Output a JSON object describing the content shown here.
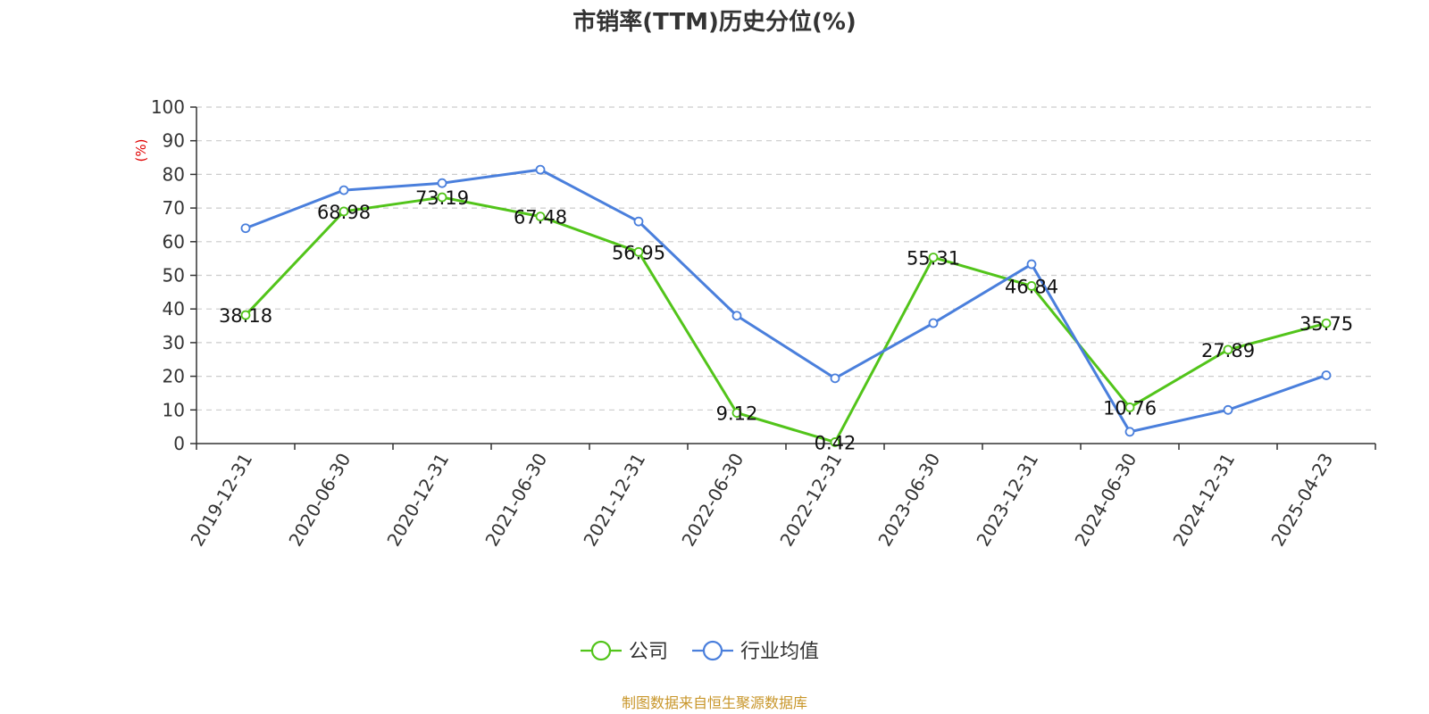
{
  "chart_data": {
    "type": "line",
    "title": "市销率(TTM)历史分位(%)",
    "ylabel": "(%)",
    "xlabel": "",
    "ylim": [
      0,
      100
    ],
    "yticks": [
      0,
      10,
      20,
      30,
      40,
      50,
      60,
      70,
      80,
      90,
      100
    ],
    "grid": true,
    "legend": "bottom-center",
    "categories": [
      "2019-12-31",
      "2020-06-30",
      "2020-12-31",
      "2021-06-30",
      "2021-12-31",
      "2022-06-30",
      "2022-12-31",
      "2023-06-30",
      "2023-12-31",
      "2024-06-30",
      "2024-12-31",
      "2025-04-23"
    ],
    "series": [
      {
        "name": "公司",
        "color": "#52c41a",
        "show_labels": true,
        "values": [
          38.18,
          68.98,
          73.19,
          67.48,
          56.95,
          9.12,
          0.42,
          55.31,
          46.84,
          10.76,
          27.89,
          35.75
        ],
        "labels": [
          "38.18",
          "68.98",
          "73.19",
          "67.48",
          "56.95",
          "9.12",
          "0.42",
          "55.31",
          "46.84",
          "10.76",
          "27.89",
          "35.75"
        ]
      },
      {
        "name": "行业均值",
        "color": "#4a7fdc",
        "show_labels": false,
        "values": [
          64,
          75.3,
          77.4,
          81.4,
          66,
          38,
          19.4,
          35.8,
          53.3,
          3.5,
          10,
          20.3
        ]
      }
    ]
  },
  "source": "制图数据来自恒生聚源数据库"
}
